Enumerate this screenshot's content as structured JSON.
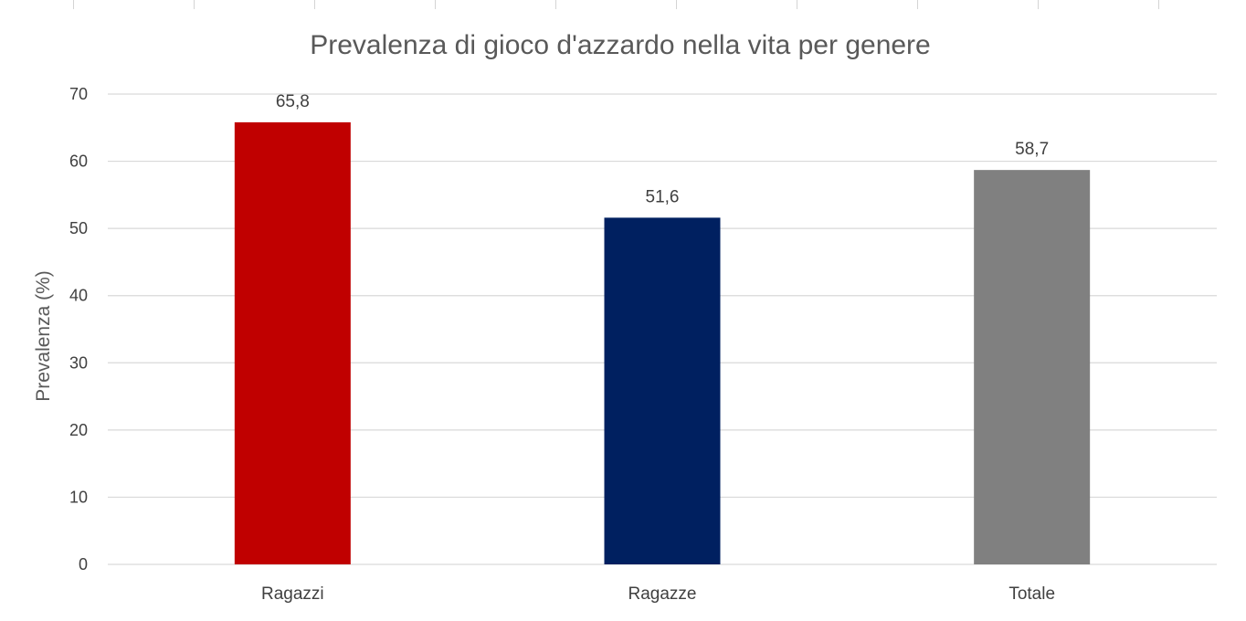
{
  "chart_data": {
    "type": "bar",
    "title": "Prevalenza di gioco d'azzardo nella vita per genere",
    "xlabel": "",
    "ylabel": "Prevalenza (%)",
    "categories": [
      "Ragazzi",
      "Ragazze",
      "Totale"
    ],
    "values": [
      65.8,
      51.6,
      58.7
    ],
    "value_labels": [
      "65,8",
      "51,6",
      "58,7"
    ],
    "colors": [
      "#c00000",
      "#002060",
      "#808080"
    ],
    "ylim": [
      0,
      70
    ],
    "yticks": [
      0,
      10,
      20,
      30,
      40,
      50,
      60,
      70
    ],
    "ytick_labels": [
      "0",
      "10",
      "20",
      "30",
      "40",
      "50",
      "60",
      "70"
    ],
    "grid": true,
    "legend": "none"
  }
}
